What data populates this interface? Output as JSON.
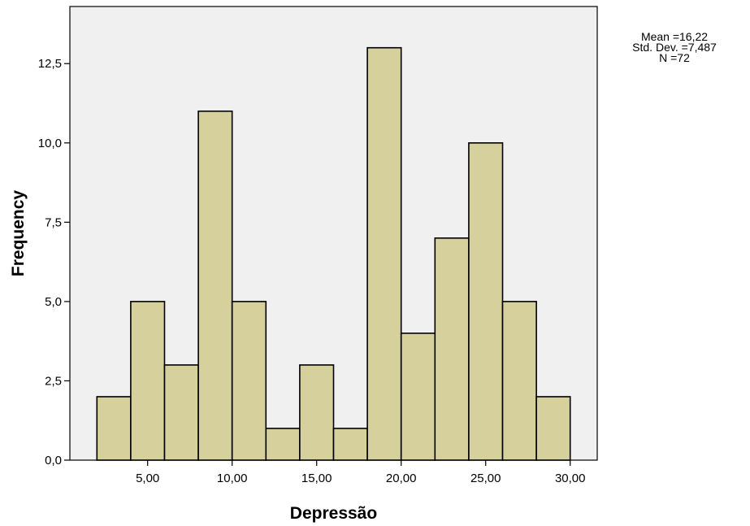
{
  "chart_data": {
    "type": "bar",
    "subtype": "histogram",
    "xlabel": "Depressão",
    "ylabel": "Frequency",
    "bins": [
      {
        "start": 2,
        "end": 4,
        "count": 2
      },
      {
        "start": 4,
        "end": 6,
        "count": 5
      },
      {
        "start": 6,
        "end": 8,
        "count": 3
      },
      {
        "start": 8,
        "end": 10,
        "count": 11
      },
      {
        "start": 10,
        "end": 12,
        "count": 5
      },
      {
        "start": 12,
        "end": 14,
        "count": 1
      },
      {
        "start": 14,
        "end": 16,
        "count": 3
      },
      {
        "start": 16,
        "end": 18,
        "count": 1
      },
      {
        "start": 18,
        "end": 20,
        "count": 13
      },
      {
        "start": 20,
        "end": 22,
        "count": 4
      },
      {
        "start": 22,
        "end": 24,
        "count": 7
      },
      {
        "start": 24,
        "end": 26,
        "count": 10
      },
      {
        "start": 26,
        "end": 28,
        "count": 5
      },
      {
        "start": 28,
        "end": 30,
        "count": 2
      }
    ],
    "xlim": [
      0.4,
      31.6
    ],
    "ylim": [
      0,
      14.3
    ],
    "x_ticks": [
      {
        "value": 5,
        "label": "5,00"
      },
      {
        "value": 10,
        "label": "10,00"
      },
      {
        "value": 15,
        "label": "15,00"
      },
      {
        "value": 20,
        "label": "20,00"
      },
      {
        "value": 25,
        "label": "25,00"
      },
      {
        "value": 30,
        "label": "30,00"
      }
    ],
    "y_ticks": [
      {
        "value": 0,
        "label": "0,0"
      },
      {
        "value": 2.5,
        "label": "2,5"
      },
      {
        "value": 5,
        "label": "5,0"
      },
      {
        "value": 7.5,
        "label": "7,5"
      },
      {
        "value": 10,
        "label": "10,0"
      },
      {
        "value": 12.5,
        "label": "12,5"
      }
    ],
    "grid": false,
    "colors": {
      "bar_fill": "#d5d09c",
      "bar_stroke": "#000000",
      "plot_background": "#f0f0f0"
    },
    "stats": {
      "mean": "Mean =16,22",
      "std_dev": "Std. Dev. =7,487",
      "n": "N =72"
    }
  }
}
